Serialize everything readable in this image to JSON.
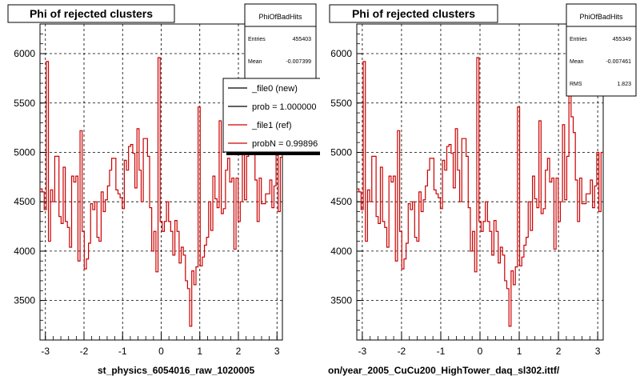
{
  "footer": {
    "left_path": "st_physics_6054016_raw_1020005",
    "right_path": "on/year_2005_CuCu200_HighTower_daq_sl302.ittf/"
  },
  "colors": {
    "ref_line": "#cc0000",
    "new_line": "#000000",
    "grid": "#000000",
    "background": "#ffffff"
  },
  "chart_data": [
    {
      "type": "histogram",
      "title": "Phi of rejected clusters",
      "xlim": [
        -3.14,
        3.14
      ],
      "ylim": [
        3100,
        6300
      ],
      "x_ticks": [
        "-3",
        "-2",
        "-1",
        "0",
        "1",
        "2",
        "3"
      ],
      "y_ticks": [
        "3500",
        "4000",
        "4500",
        "5000",
        "5500",
        "6000"
      ],
      "grid": true,
      "stats": {
        "name": "PhiOfBadHits",
        "rows": [
          {
            "label": "Entries",
            "value": "455403"
          },
          {
            "label": "Mean",
            "value": "-0.007399"
          }
        ]
      },
      "legend": {
        "placement": "top-right",
        "entries": [
          {
            "label": "_file0 (new)",
            "color": "#000000"
          },
          {
            "label": "prob = 1.000000",
            "color": "#000000"
          },
          {
            "label": "_file1 (ref)",
            "color": "#cc0000"
          },
          {
            "label": "probN = 0.99896",
            "color": "#cc0000"
          }
        ]
      },
      "series": [
        {
          "color": "#cc0000",
          "values": [
            4630,
            4600,
            4420,
            5920,
            4100,
            4620,
            4500,
            4960,
            4960,
            4350,
            4280,
            4850,
            4300,
            4240,
            4040,
            4760,
            4700,
            4760,
            3900,
            5220,
            4200,
            3820,
            3920,
            4080,
            4480,
            4420,
            4500,
            4140,
            4100,
            4600,
            4400,
            4520,
            4660,
            4820,
            4940,
            4940,
            4620,
            4580,
            4540,
            4430,
            4920,
            4820,
            5060,
            5080,
            4990,
            4640,
            5240,
            4820,
            4500,
            5140,
            5140,
            4960,
            4440,
            4000,
            4200,
            3790,
            5960,
            4300,
            4200,
            4300,
            4500,
            4300,
            4200,
            3960,
            4310,
            4200,
            3880,
            4040,
            3960,
            3700,
            3620,
            3240,
            3800,
            3660,
            3840,
            5460,
            3850,
            3940,
            4060,
            4140,
            4500,
            4210,
            4760,
            4530,
            4440,
            5320,
            4380,
            4430,
            4820,
            4940,
            4700,
            4740,
            4020,
            4740,
            4300,
            4500,
            5280,
            4520,
            4960,
            6140,
            5360,
            5200,
            4720,
            4300,
            4740,
            4480,
            4480,
            4580,
            4580,
            4720,
            4440,
            4660,
            5000,
            4400,
            4950
          ]
        }
      ]
    },
    {
      "type": "histogram",
      "title": "Phi of rejected clusters",
      "xlim": [
        -3.14,
        3.14
      ],
      "ylim": [
        3100,
        6300
      ],
      "x_ticks": [
        "-3",
        "-2",
        "-1",
        "0",
        "1",
        "2",
        "3"
      ],
      "y_ticks": [
        "3500",
        "4000",
        "4500",
        "5000",
        "5500",
        "6000"
      ],
      "grid": true,
      "stats": {
        "name": "PhiOfBadHits",
        "rows": [
          {
            "label": "Entries",
            "value": "455349"
          },
          {
            "label": "Mean",
            "value": "-0.007461"
          },
          {
            "label": "RMS",
            "value": "1.823"
          }
        ]
      },
      "series": [
        {
          "color": "#cc0000",
          "values": [
            4630,
            4600,
            4420,
            5920,
            4100,
            4620,
            4500,
            4960,
            4960,
            4350,
            4280,
            4850,
            4300,
            4240,
            4040,
            4760,
            4700,
            4760,
            3900,
            5220,
            4200,
            3820,
            3920,
            4080,
            4480,
            4420,
            4500,
            4140,
            4100,
            4600,
            4400,
            4520,
            4660,
            4820,
            4940,
            4940,
            4620,
            4580,
            4540,
            4430,
            4920,
            4820,
            5060,
            5080,
            4990,
            4640,
            5240,
            4820,
            4500,
            5140,
            5140,
            4960,
            4440,
            4000,
            4200,
            3790,
            5960,
            4300,
            4200,
            4300,
            4500,
            4300,
            4200,
            3960,
            4310,
            4200,
            3880,
            4040,
            3960,
            3700,
            3620,
            3240,
            3800,
            3660,
            3840,
            5460,
            3850,
            3940,
            4060,
            4140,
            4500,
            4210,
            4760,
            4530,
            4440,
            5320,
            4380,
            4430,
            4820,
            4940,
            4700,
            4740,
            4020,
            4740,
            4300,
            4500,
            5280,
            4520,
            4960,
            6140,
            5360,
            5200,
            4720,
            4300,
            4740,
            4480,
            4480,
            4580,
            4580,
            4720,
            4440,
            4660,
            5000,
            4400,
            5000
          ]
        }
      ]
    }
  ]
}
